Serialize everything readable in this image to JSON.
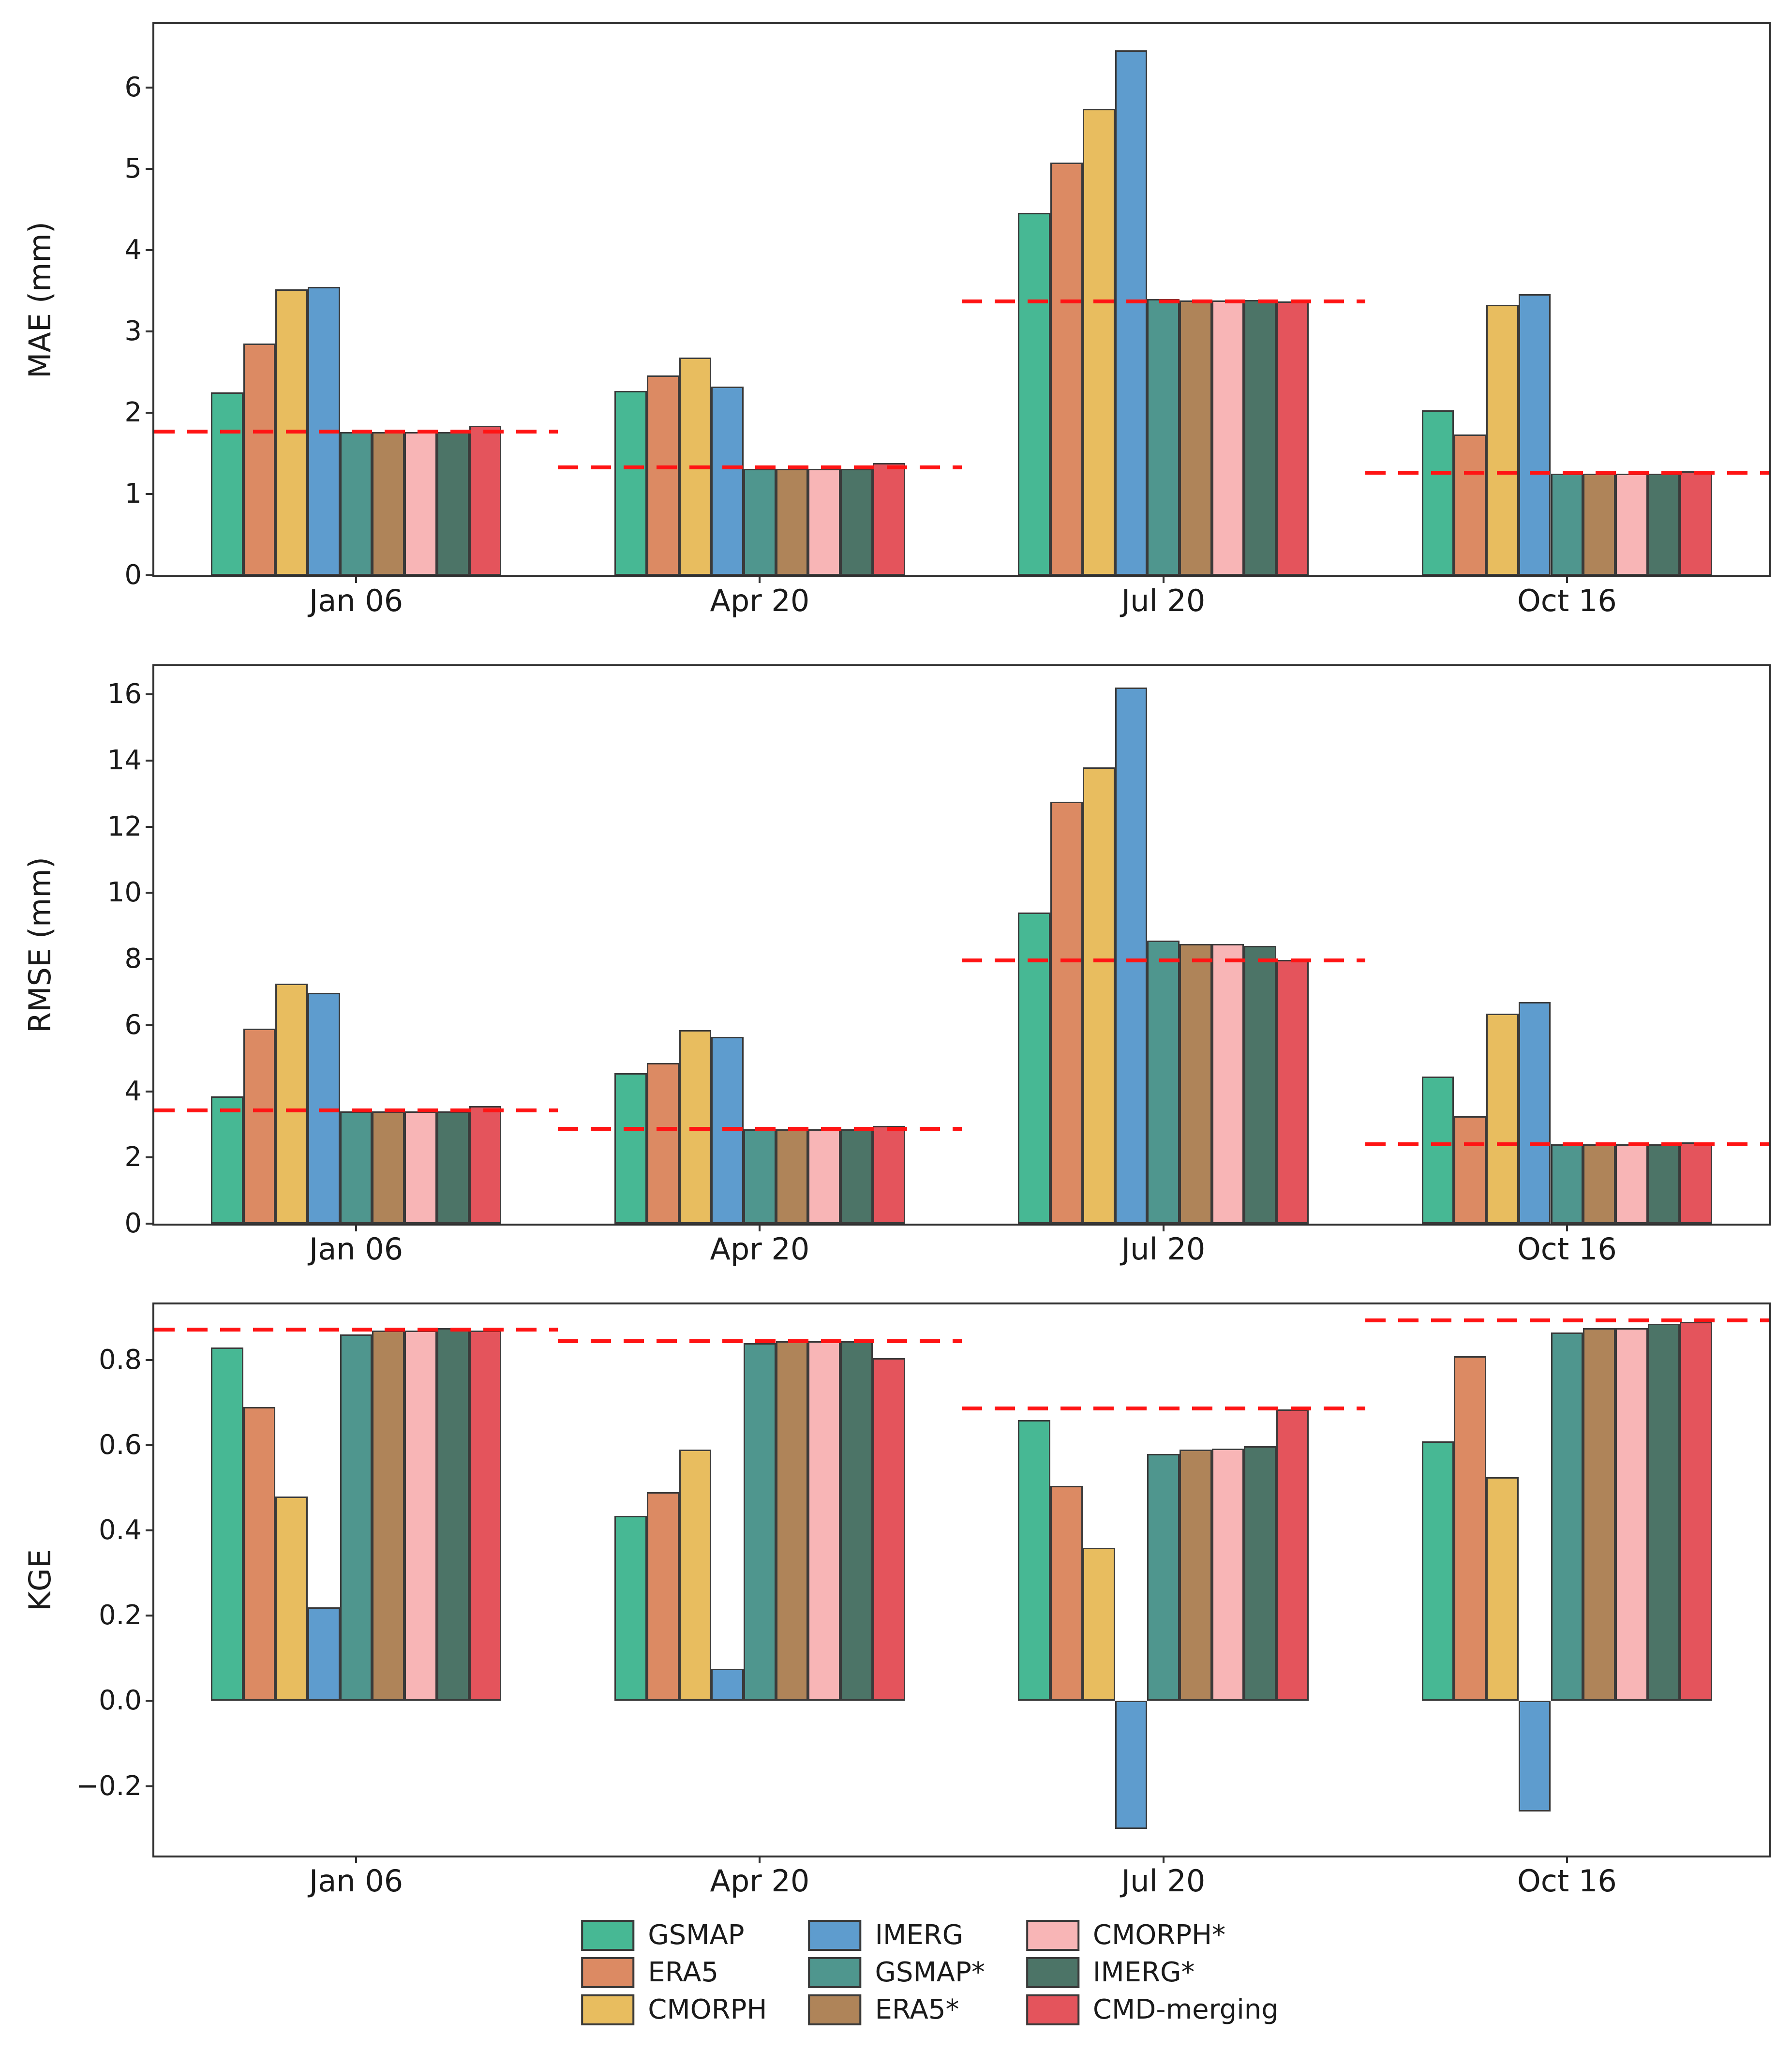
{
  "figure": {
    "background": "#ffffff",
    "axis_color": "#2f2f2f",
    "bar_edge_color": "#3a3a3a",
    "reference_line_color": "#ff1414"
  },
  "legend": {
    "columns": [
      [
        {
          "label": "GSMAP",
          "color": "#47B894"
        },
        {
          "label": "ERA5",
          "color": "#DC8A63"
        },
        {
          "label": "CMORPH",
          "color": "#E8BD5F"
        }
      ],
      [
        {
          "label": "IMERG",
          "color": "#5E9CCE"
        },
        {
          "label": "GSMAP*",
          "color": "#4F968E"
        },
        {
          "label": "ERA5*",
          "color": "#AF8459"
        }
      ],
      [
        {
          "label": "CMORPH*",
          "color": "#F8B5B6"
        },
        {
          "label": "IMERG*",
          "color": "#4C7467"
        },
        {
          "label": "CMD-merging",
          "color": "#E4545C"
        }
      ]
    ]
  },
  "chart_data": [
    {
      "type": "bar",
      "title": "",
      "xlabel": "",
      "ylabel": "MAE (mm)",
      "grid": false,
      "categories": [
        "Jan 06",
        "Apr 20",
        "Jul 20",
        "Oct 16"
      ],
      "ylim": [
        0,
        6.78
      ],
      "ytick_values": [
        0,
        1,
        2,
        3,
        4,
        5,
        6
      ],
      "ytick_labels": [
        "0",
        "1",
        "2",
        "3",
        "4",
        "5",
        "6"
      ],
      "series": [
        {
          "name": "GSMAP",
          "color": "#47B894",
          "values": [
            2.25,
            2.27,
            4.46,
            2.03
          ]
        },
        {
          "name": "ERA5",
          "color": "#DC8A63",
          "values": [
            2.85,
            2.46,
            5.08,
            1.73
          ]
        },
        {
          "name": "CMORPH",
          "color": "#E8BD5F",
          "values": [
            3.52,
            2.68,
            5.74,
            3.33
          ]
        },
        {
          "name": "IMERG",
          "color": "#5E9CCE",
          "values": [
            3.55,
            2.32,
            6.46,
            3.46
          ]
        },
        {
          "name": "GSMAP*",
          "color": "#4F968E",
          "values": [
            1.76,
            1.31,
            3.4,
            1.25
          ]
        },
        {
          "name": "ERA5*",
          "color": "#AF8459",
          "values": [
            1.76,
            1.31,
            3.38,
            1.25
          ]
        },
        {
          "name": "CMORPH*",
          "color": "#F8B5B6",
          "values": [
            1.76,
            1.31,
            3.38,
            1.25
          ]
        },
        {
          "name": "IMERG*",
          "color": "#4C7467",
          "values": [
            1.76,
            1.31,
            3.39,
            1.25
          ]
        },
        {
          "name": "CMD-merging",
          "color": "#E4545C",
          "values": [
            1.84,
            1.38,
            3.37,
            1.28
          ]
        }
      ],
      "reference_lines": {
        "style": "dashed",
        "color": "#ff1414",
        "per_category_values": [
          1.77,
          1.33,
          3.37,
          1.26
        ]
      }
    },
    {
      "type": "bar",
      "title": "",
      "xlabel": "",
      "ylabel": "RMSE (mm)",
      "grid": false,
      "categories": [
        "Jan 06",
        "Apr 20",
        "Jul 20",
        "Oct 16"
      ],
      "ylim": [
        0,
        16.85
      ],
      "ytick_values": [
        0,
        2,
        4,
        6,
        8,
        10,
        12,
        14,
        16
      ],
      "ytick_labels": [
        "0",
        "2",
        "4",
        "6",
        "8",
        "10",
        "12",
        "14",
        "16"
      ],
      "series": [
        {
          "name": "GSMAP",
          "color": "#47B894",
          "values": [
            3.85,
            4.55,
            9.4,
            4.45
          ]
        },
        {
          "name": "ERA5",
          "color": "#DC8A63",
          "values": [
            5.9,
            4.85,
            12.75,
            3.25
          ]
        },
        {
          "name": "CMORPH",
          "color": "#E8BD5F",
          "values": [
            7.25,
            5.85,
            13.8,
            6.35
          ]
        },
        {
          "name": "IMERG",
          "color": "#5E9CCE",
          "values": [
            6.97,
            5.65,
            16.2,
            6.7
          ]
        },
        {
          "name": "GSMAP*",
          "color": "#4F968E",
          "values": [
            3.4,
            2.85,
            8.55,
            2.4
          ]
        },
        {
          "name": "ERA5*",
          "color": "#AF8459",
          "values": [
            3.4,
            2.85,
            8.45,
            2.4
          ]
        },
        {
          "name": "CMORPH*",
          "color": "#F8B5B6",
          "values": [
            3.4,
            2.85,
            8.45,
            2.4
          ]
        },
        {
          "name": "IMERG*",
          "color": "#4C7467",
          "values": [
            3.4,
            2.85,
            8.4,
            2.4
          ]
        },
        {
          "name": "CMD-merging",
          "color": "#E4545C",
          "values": [
            3.55,
            2.95,
            7.97,
            2.45
          ]
        }
      ],
      "reference_lines": {
        "style": "dashed",
        "color": "#ff1414",
        "per_category_values": [
          3.42,
          2.87,
          7.95,
          2.4
        ]
      }
    },
    {
      "type": "bar",
      "title": "",
      "xlabel": "",
      "ylabel": "KGE",
      "grid": false,
      "categories": [
        "Jan 06",
        "Apr 20",
        "Jul 20",
        "Oct 16"
      ],
      "ylim": [
        -0.363,
        0.931
      ],
      "ytick_values": [
        -0.2,
        0.0,
        0.2,
        0.4,
        0.6,
        0.8
      ],
      "ytick_labels": [
        "−0.2",
        "0.0",
        "0.2",
        "0.4",
        "0.6",
        "0.8"
      ],
      "series": [
        {
          "name": "GSMAP",
          "color": "#47B894",
          "values": [
            0.83,
            0.435,
            0.66,
            0.61
          ]
        },
        {
          "name": "ERA5",
          "color": "#DC8A63",
          "values": [
            0.69,
            0.49,
            0.505,
            0.81
          ]
        },
        {
          "name": "CMORPH",
          "color": "#E8BD5F",
          "values": [
            0.48,
            0.59,
            0.36,
            0.525
          ]
        },
        {
          "name": "IMERG",
          "color": "#5E9CCE",
          "values": [
            0.22,
            0.075,
            -0.3,
            -0.26
          ]
        },
        {
          "name": "GSMAP*",
          "color": "#4F968E",
          "values": [
            0.86,
            0.84,
            0.58,
            0.865
          ]
        },
        {
          "name": "ERA5*",
          "color": "#AF8459",
          "values": [
            0.87,
            0.845,
            0.59,
            0.875
          ]
        },
        {
          "name": "CMORPH*",
          "color": "#F8B5B6",
          "values": [
            0.87,
            0.845,
            0.593,
            0.875
          ]
        },
        {
          "name": "IMERG*",
          "color": "#4C7467",
          "values": [
            0.875,
            0.845,
            0.598,
            0.885
          ]
        },
        {
          "name": "CMD-merging",
          "color": "#E4545C",
          "values": [
            0.87,
            0.805,
            0.685,
            0.89
          ]
        }
      ],
      "reference_lines": {
        "style": "dashed",
        "color": "#ff1414",
        "per_category_values": [
          0.872,
          0.845,
          0.687,
          0.893
        ]
      }
    }
  ]
}
